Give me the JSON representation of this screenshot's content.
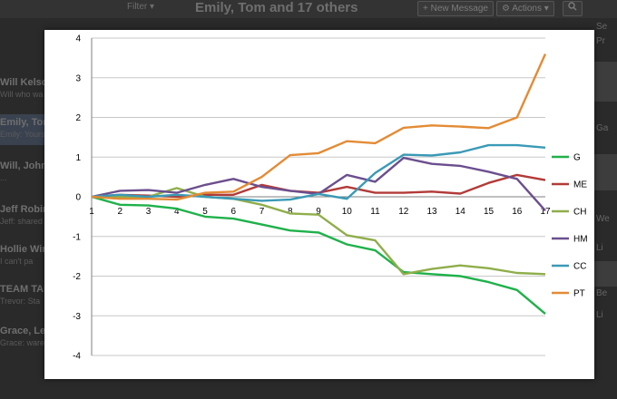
{
  "background": {
    "filter_label": "Filter ▾",
    "title": "Emily, Tom and 17 others",
    "new_message": "+ New Message",
    "actions": "⚙ Actions ▾",
    "search_icon": "magnifier-icon",
    "conversations": [
      {
        "name": "Will Kelso",
        "snippet": "Will who wa"
      },
      {
        "name": "Emily, Tom",
        "snippet": "Emily: Yours"
      },
      {
        "name": "Will, John,",
        "snippet": "..."
      },
      {
        "name": "Jeff Robinson",
        "snippet": "Jeff: shared"
      },
      {
        "name": "Hollie Wins",
        "snippet": "I can't pa"
      },
      {
        "name": "TEAM TAB",
        "snippet": "Trevor: Sta"
      },
      {
        "name": "Grace, Lee",
        "snippet": "Grace: ware"
      }
    ],
    "right_snippets": [
      "Se",
      "Pr",
      "Ga",
      "We",
      "Li",
      "Be",
      "Li"
    ]
  },
  "chart_data": {
    "type": "line",
    "title": "",
    "xlabel": "",
    "ylabel": "",
    "x": [
      1,
      2,
      3,
      4,
      5,
      6,
      7,
      8,
      9,
      10,
      11,
      12,
      13,
      14,
      15,
      16,
      17
    ],
    "ylim": [
      -4,
      4
    ],
    "yticks": [
      -4,
      -3,
      -2,
      -1,
      0,
      1,
      2,
      3,
      4
    ],
    "grid": "horizontal",
    "legend_position": "right",
    "series": [
      {
        "name": "G",
        "color": "#1fb14a",
        "values": [
          0,
          -0.2,
          -0.22,
          -0.3,
          -0.5,
          -0.55,
          -0.7,
          -0.85,
          -0.9,
          -1.2,
          -1.35,
          -1.9,
          -1.95,
          -2.0,
          -2.15,
          -2.35,
          -2.95
        ]
      },
      {
        "name": "ME",
        "color": "#b23b38",
        "values": [
          0,
          0.05,
          0.03,
          0.0,
          0.05,
          0.05,
          0.3,
          0.15,
          0.1,
          0.25,
          0.1,
          0.1,
          0.13,
          0.08,
          0.35,
          0.55,
          0.42
        ]
      },
      {
        "name": "CH",
        "color": "#8fae4a",
        "values": [
          0,
          0.0,
          0.0,
          0.22,
          0.0,
          -0.05,
          -0.2,
          -0.42,
          -0.45,
          -0.97,
          -1.1,
          -1.95,
          -1.82,
          -1.73,
          -1.8,
          -1.92,
          -1.95
        ]
      },
      {
        "name": "HM",
        "color": "#6b4f8e",
        "values": [
          0,
          0.15,
          0.17,
          0.1,
          0.3,
          0.45,
          0.25,
          0.15,
          0.07,
          0.55,
          0.38,
          0.98,
          0.83,
          0.78,
          0.63,
          0.45,
          -0.35
        ]
      },
      {
        "name": "CC",
        "color": "#3a9ab6",
        "values": [
          0,
          0.05,
          0.0,
          0.05,
          0.0,
          -0.05,
          -0.1,
          -0.07,
          0.07,
          -0.05,
          0.6,
          1.06,
          1.04,
          1.12,
          1.3,
          1.3,
          1.24
        ]
      },
      {
        "name": "PT",
        "color": "#e38b35",
        "values": [
          0,
          -0.05,
          -0.05,
          -0.07,
          0.1,
          0.13,
          0.5,
          1.05,
          1.1,
          1.4,
          1.35,
          1.74,
          1.8,
          1.77,
          1.73,
          2.0,
          3.6
        ]
      }
    ]
  }
}
